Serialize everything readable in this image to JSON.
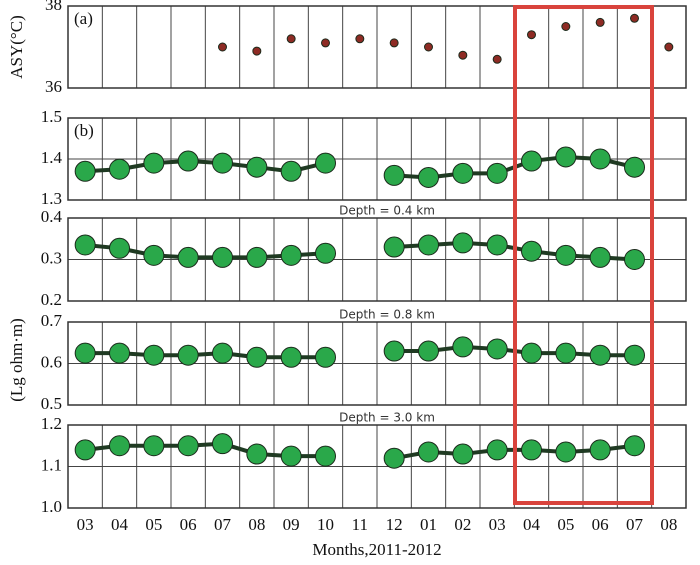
{
  "chart_data": [
    {
      "type": "scatter",
      "label": "(a)",
      "ylabel": "ASY(°C)",
      "color": "#8e2b24",
      "values": [
        null,
        null,
        null,
        null,
        37.0,
        36.9,
        37.2,
        37.1,
        37.2,
        37.1,
        37.0,
        36.8,
        36.7,
        37.3,
        37.5,
        37.6,
        37.7,
        37.0
      ],
      "ylim": [
        36,
        38
      ],
      "yticks": [
        36,
        38
      ],
      "grid": true
    },
    {
      "type": "line",
      "label": "(b)",
      "color": "#2aa84a",
      "values": [
        1.37,
        1.375,
        1.39,
        1.395,
        1.39,
        1.38,
        1.37,
        1.39,
        null,
        1.36,
        1.355,
        1.365,
        1.365,
        1.395,
        1.405,
        1.4,
        1.38,
        null
      ],
      "ylim": [
        1.3,
        1.5
      ],
      "yticks": [
        1.3,
        1.4,
        1.5
      ],
      "grid": true
    },
    {
      "type": "line",
      "title": "Depth = 0.4 km",
      "color": "#2aa84a",
      "values": [
        0.335,
        0.327,
        0.31,
        0.305,
        0.305,
        0.305,
        0.31,
        0.315,
        null,
        0.33,
        0.335,
        0.34,
        0.335,
        0.32,
        0.31,
        0.305,
        0.3,
        null
      ],
      "ylim": [
        0.2,
        0.4
      ],
      "yticks": [
        0.2,
        0.3,
        0.4
      ],
      "grid": true
    },
    {
      "type": "line",
      "title": "Depth = 0.8 km",
      "ylabel": "(Lg ohm·m)",
      "color": "#2aa84a",
      "values": [
        0.625,
        0.625,
        0.62,
        0.62,
        0.625,
        0.615,
        0.615,
        0.615,
        null,
        0.63,
        0.63,
        0.64,
        0.635,
        0.625,
        0.625,
        0.62,
        0.62,
        null
      ],
      "ylim": [
        0.5,
        0.7
      ],
      "yticks": [
        0.5,
        0.6,
        0.7
      ],
      "grid": true
    },
    {
      "type": "line",
      "title": "Depth = 3.0 km",
      "color": "#2aa84a",
      "xlabel": "Months,2011-2012",
      "categories": [
        "03",
        "04",
        "05",
        "06",
        "07",
        "08",
        "09",
        "10",
        "11",
        "12",
        "01",
        "02",
        "03",
        "04",
        "05",
        "06",
        "07",
        "08"
      ],
      "values": [
        1.14,
        1.15,
        1.15,
        1.15,
        1.155,
        1.13,
        1.125,
        1.125,
        null,
        1.12,
        1.135,
        1.13,
        1.14,
        1.14,
        1.135,
        1.14,
        1.15,
        null
      ],
      "ylim": [
        1.0,
        1.2
      ],
      "yticks": [
        {
          "value": 1.0,
          "label": "1.0"
        },
        {
          "value": 1.1,
          "label": "1.1"
        },
        {
          "value": 1.2,
          "label": "1.2"
        }
      ],
      "grid": true
    }
  ]
}
